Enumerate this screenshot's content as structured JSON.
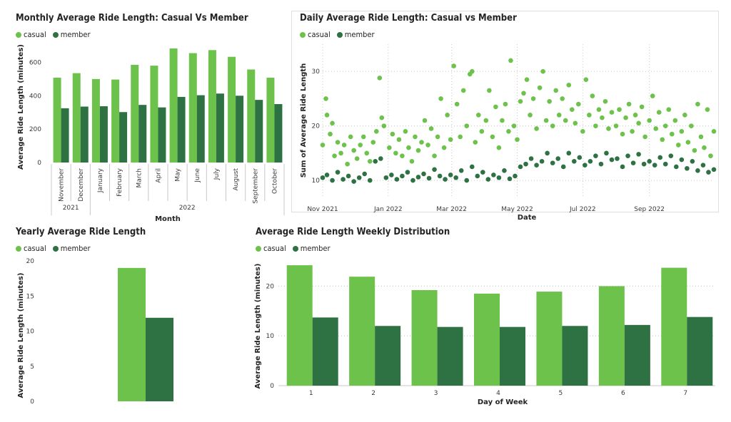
{
  "colors": {
    "casual": "#6cc24a",
    "member": "#2e7142"
  },
  "legend": {
    "casual": "casual",
    "member": "member"
  },
  "monthly": {
    "title": "Monthly Average Ride Length: Casual Vs Member",
    "ylabel": "Average Ride Length (minutes)",
    "xlabel": "Month",
    "yticks": [
      0,
      200,
      400,
      600
    ],
    "ylim": [
      0,
      700
    ],
    "months": [
      "November",
      "December",
      "January",
      "February",
      "March",
      "April",
      "May",
      "June",
      "July",
      "August",
      "September",
      "October"
    ],
    "years": [
      {
        "label": "2021",
        "from": 0,
        "to": 1
      },
      {
        "label": "2022",
        "from": 2,
        "to": 11
      }
    ]
  },
  "daily": {
    "title": "Daily Average Ride Length: Casual vs Member",
    "ylabel": "Sum of Average Ride Length",
    "xlabel": "Date",
    "yticks": [
      10,
      20,
      30
    ],
    "xticks": [
      "Nov 2021",
      "Jan 2022",
      "Mar 2022",
      "May 2022",
      "Jul 2022",
      "Sep 2022"
    ]
  },
  "yearly": {
    "title": "Yearly Average Ride Length",
    "ylabel": "Average Ride Length (minutes)",
    "yticks": [
      0,
      5,
      10,
      15,
      20
    ]
  },
  "weekly": {
    "title": "Average Ride Length Weekly Distribution",
    "ylabel": "Average Ride Length (minutes)",
    "xlabel": "Day of Week",
    "yticks": [
      0,
      10,
      20
    ]
  },
  "chart_data": [
    {
      "type": "bar",
      "title": "Monthly Average Ride Length: Casual Vs Member",
      "xlabel": "Month",
      "ylabel": "Average Ride Length (minutes)",
      "categories": [
        "November",
        "December",
        "January",
        "February",
        "March",
        "April",
        "May",
        "June",
        "July",
        "August",
        "September",
        "October"
      ],
      "series": [
        {
          "name": "casual",
          "values": [
            508,
            535,
            500,
            497,
            585,
            580,
            683,
            655,
            673,
            633,
            557,
            508
          ]
        },
        {
          "name": "member",
          "values": [
            325,
            335,
            337,
            302,
            345,
            330,
            393,
            403,
            413,
            400,
            375,
            350
          ]
        }
      ],
      "ylim": [
        0,
        700
      ]
    },
    {
      "type": "scatter",
      "title": "Daily Average Ride Length: Casual vs Member",
      "xlabel": "Date",
      "ylabel": "Sum of Average Ride Length",
      "x_range": [
        "2021-11-01",
        "2022-10-31"
      ],
      "ylim": [
        7,
        35
      ],
      "series": [
        {
          "name": "casual",
          "points": [
            [
              "2021-11-01",
              16.5
            ],
            [
              "2021-11-04",
              25
            ],
            [
              "2021-11-05",
              22
            ],
            [
              "2021-11-08",
              18.5
            ],
            [
              "2021-11-10",
              20.5
            ],
            [
              "2021-11-12",
              14.5
            ],
            [
              "2021-11-15",
              17
            ],
            [
              "2021-11-18",
              15
            ],
            [
              "2021-11-21",
              16.5
            ],
            [
              "2021-11-24",
              13
            ],
            [
              "2021-11-27",
              18
            ],
            [
              "2021-11-30",
              15.5
            ],
            [
              "2021-12-03",
              14
            ],
            [
              "2021-12-06",
              16.5
            ],
            [
              "2021-12-09",
              18
            ],
            [
              "2021-12-12",
              15
            ],
            [
              "2021-12-15",
              13.5
            ],
            [
              "2021-12-18",
              17
            ],
            [
              "2021-12-21",
              19
            ],
            [
              "2021-12-24",
              28.8
            ],
            [
              "2021-12-26",
              21.5
            ],
            [
              "2021-12-28",
              20
            ],
            [
              "2022-01-02",
              16
            ],
            [
              "2022-01-05",
              18.5
            ],
            [
              "2022-01-08",
              15
            ],
            [
              "2022-01-11",
              17.5
            ],
            [
              "2022-01-14",
              14.5
            ],
            [
              "2022-01-17",
              19
            ],
            [
              "2022-01-20",
              16
            ],
            [
              "2022-01-23",
              13.5
            ],
            [
              "2022-01-26",
              18
            ],
            [
              "2022-01-29",
              15.5
            ],
            [
              "2022-02-01",
              17
            ],
            [
              "2022-02-04",
              21
            ],
            [
              "2022-02-07",
              16.5
            ],
            [
              "2022-02-10",
              19.5
            ],
            [
              "2022-02-13",
              14.5
            ],
            [
              "2022-02-16",
              18
            ],
            [
              "2022-02-19",
              25
            ],
            [
              "2022-02-22",
              16
            ],
            [
              "2022-02-25",
              22
            ],
            [
              "2022-02-28",
              17.5
            ],
            [
              "2022-03-03",
              31
            ],
            [
              "2022-03-06",
              24
            ],
            [
              "2022-03-09",
              18
            ],
            [
              "2022-03-12",
              26.5
            ],
            [
              "2022-03-15",
              20
            ],
            [
              "2022-03-18",
              29.5
            ],
            [
              "2022-03-20",
              30
            ],
            [
              "2022-03-23",
              17
            ],
            [
              "2022-03-26",
              22
            ],
            [
              "2022-03-29",
              19
            ],
            [
              "2022-04-02",
              21
            ],
            [
              "2022-04-05",
              26.5
            ],
            [
              "2022-04-08",
              18
            ],
            [
              "2022-04-11",
              23.5
            ],
            [
              "2022-04-14",
              16
            ],
            [
              "2022-04-17",
              21
            ],
            [
              "2022-04-20",
              24
            ],
            [
              "2022-04-23",
              19
            ],
            [
              "2022-04-25",
              32
            ],
            [
              "2022-04-28",
              20
            ],
            [
              "2022-05-01",
              17.5
            ],
            [
              "2022-05-04",
              24.5
            ],
            [
              "2022-05-07",
              26
            ],
            [
              "2022-05-10",
              28.5
            ],
            [
              "2022-05-13",
              22
            ],
            [
              "2022-05-16",
              25
            ],
            [
              "2022-05-19",
              19.5
            ],
            [
              "2022-05-22",
              27
            ],
            [
              "2022-05-25",
              30
            ],
            [
              "2022-05-28",
              21
            ],
            [
              "2022-05-31",
              24.5
            ],
            [
              "2022-06-03",
              20
            ],
            [
              "2022-06-06",
              26.5
            ],
            [
              "2022-06-09",
              22
            ],
            [
              "2022-06-12",
              25
            ],
            [
              "2022-06-15",
              21
            ],
            [
              "2022-06-18",
              27.5
            ],
            [
              "2022-06-21",
              23
            ],
            [
              "2022-06-24",
              20.5
            ],
            [
              "2022-06-27",
              24
            ],
            [
              "2022-07-01",
              19
            ],
            [
              "2022-07-04",
              28.5
            ],
            [
              "2022-07-07",
              22
            ],
            [
              "2022-07-10",
              25.5
            ],
            [
              "2022-07-13",
              20
            ],
            [
              "2022-07-16",
              23
            ],
            [
              "2022-07-19",
              21.5
            ],
            [
              "2022-07-22",
              24.5
            ],
            [
              "2022-07-25",
              19.5
            ],
            [
              "2022-07-28",
              22.5
            ],
            [
              "2022-08-01",
              20
            ],
            [
              "2022-08-04",
              23
            ],
            [
              "2022-08-07",
              18.5
            ],
            [
              "2022-08-10",
              21.5
            ],
            [
              "2022-08-13",
              24
            ],
            [
              "2022-08-16",
              19
            ],
            [
              "2022-08-19",
              22
            ],
            [
              "2022-08-22",
              20.5
            ],
            [
              "2022-08-25",
              23.5
            ],
            [
              "2022-08-28",
              18
            ],
            [
              "2022-09-01",
              21
            ],
            [
              "2022-09-04",
              25.5
            ],
            [
              "2022-09-07",
              19.5
            ],
            [
              "2022-09-10",
              22.5
            ],
            [
              "2022-09-13",
              17.5
            ],
            [
              "2022-09-16",
              20
            ],
            [
              "2022-09-19",
              23
            ],
            [
              "2022-09-22",
              18.5
            ],
            [
              "2022-09-25",
              21
            ],
            [
              "2022-09-28",
              16.5
            ],
            [
              "2022-10-01",
              19
            ],
            [
              "2022-10-04",
              22
            ],
            [
              "2022-10-07",
              17
            ],
            [
              "2022-10-10",
              20
            ],
            [
              "2022-10-13",
              15.5
            ],
            [
              "2022-10-16",
              24
            ],
            [
              "2022-10-19",
              18
            ],
            [
              "2022-10-22",
              16
            ],
            [
              "2022-10-25",
              23
            ],
            [
              "2022-10-28",
              14.5
            ],
            [
              "2022-10-31",
              19
            ]
          ]
        },
        {
          "name": "member",
          "points": [
            [
              "2021-11-01",
              10.5
            ],
            [
              "2021-11-05",
              11
            ],
            [
              "2021-11-10",
              10
            ],
            [
              "2021-11-15",
              11.5
            ],
            [
              "2021-11-20",
              10.2
            ],
            [
              "2021-11-25",
              10.8
            ],
            [
              "2021-11-30",
              9.8
            ],
            [
              "2021-12-05",
              10.5
            ],
            [
              "2021-12-10",
              11.2
            ],
            [
              "2021-12-15",
              10
            ],
            [
              "2021-12-20",
              13.5
            ],
            [
              "2021-12-25",
              14
            ],
            [
              "2021-12-30",
              10.5
            ],
            [
              "2022-01-04",
              11
            ],
            [
              "2022-01-09",
              10.2
            ],
            [
              "2022-01-14",
              10.8
            ],
            [
              "2022-01-19",
              11.5
            ],
            [
              "2022-01-24",
              10
            ],
            [
              "2022-01-29",
              10.6
            ],
            [
              "2022-02-03",
              11.2
            ],
            [
              "2022-02-08",
              10.4
            ],
            [
              "2022-02-13",
              12
            ],
            [
              "2022-02-18",
              10.8
            ],
            [
              "2022-02-23",
              10.2
            ],
            [
              "2022-02-28",
              11
            ],
            [
              "2022-03-05",
              10.5
            ],
            [
              "2022-03-10",
              11.8
            ],
            [
              "2022-03-15",
              10
            ],
            [
              "2022-03-20",
              12.5
            ],
            [
              "2022-03-25",
              10.8
            ],
            [
              "2022-03-30",
              11.5
            ],
            [
              "2022-04-04",
              10.2
            ],
            [
              "2022-04-09",
              11
            ],
            [
              "2022-04-14",
              10.5
            ],
            [
              "2022-04-19",
              11.8
            ],
            [
              "2022-04-24",
              10.3
            ],
            [
              "2022-04-29",
              10.8
            ],
            [
              "2022-05-04",
              12.5
            ],
            [
              "2022-05-09",
              13
            ],
            [
              "2022-05-14",
              14
            ],
            [
              "2022-05-19",
              12.8
            ],
            [
              "2022-05-24",
              13.5
            ],
            [
              "2022-05-29",
              15
            ],
            [
              "2022-06-03",
              13.2
            ],
            [
              "2022-06-08",
              14
            ],
            [
              "2022-06-13",
              12.5
            ],
            [
              "2022-06-18",
              15
            ],
            [
              "2022-06-23",
              13.5
            ],
            [
              "2022-06-28",
              14.2
            ],
            [
              "2022-07-03",
              12.8
            ],
            [
              "2022-07-08",
              13.5
            ],
            [
              "2022-07-13",
              14.5
            ],
            [
              "2022-07-18",
              13
            ],
            [
              "2022-07-23",
              15
            ],
            [
              "2022-07-28",
              13.8
            ],
            [
              "2022-08-02",
              14
            ],
            [
              "2022-08-07",
              12.5
            ],
            [
              "2022-08-12",
              14.5
            ],
            [
              "2022-08-17",
              13.2
            ],
            [
              "2022-08-22",
              14.8
            ],
            [
              "2022-08-27",
              13
            ],
            [
              "2022-09-01",
              13.5
            ],
            [
              "2022-09-06",
              12.8
            ],
            [
              "2022-09-11",
              14.2
            ],
            [
              "2022-09-16",
              13
            ],
            [
              "2022-09-21",
              14.5
            ],
            [
              "2022-09-26",
              12.5
            ],
            [
              "2022-10-01",
              13.8
            ],
            [
              "2022-10-06",
              12.2
            ],
            [
              "2022-10-11",
              13.5
            ],
            [
              "2022-10-16",
              11.8
            ],
            [
              "2022-10-21",
              12.8
            ],
            [
              "2022-10-26",
              11.5
            ],
            [
              "2022-10-31",
              12
            ]
          ]
        }
      ]
    },
    {
      "type": "bar",
      "title": "Yearly Average Ride Length",
      "ylabel": "Average Ride Length (minutes)",
      "categories": [
        ""
      ],
      "series": [
        {
          "name": "casual",
          "values": [
            19
          ]
        },
        {
          "name": "member",
          "values": [
            11.9
          ]
        }
      ],
      "ylim": [
        0,
        20
      ]
    },
    {
      "type": "bar",
      "title": "Average Ride Length Weekly Distribution",
      "xlabel": "Day of Week",
      "ylabel": "Average Ride Length (minutes)",
      "categories": [
        "1",
        "2",
        "3",
        "4",
        "5",
        "6",
        "7"
      ],
      "series": [
        {
          "name": "casual",
          "values": [
            24.2,
            21.9,
            19.2,
            18.5,
            18.9,
            20,
            23.7
          ]
        },
        {
          "name": "member",
          "values": [
            13.7,
            12,
            11.8,
            11.8,
            12,
            12.2,
            13.8
          ]
        }
      ],
      "ylim": [
        0,
        24.5
      ]
    }
  ]
}
